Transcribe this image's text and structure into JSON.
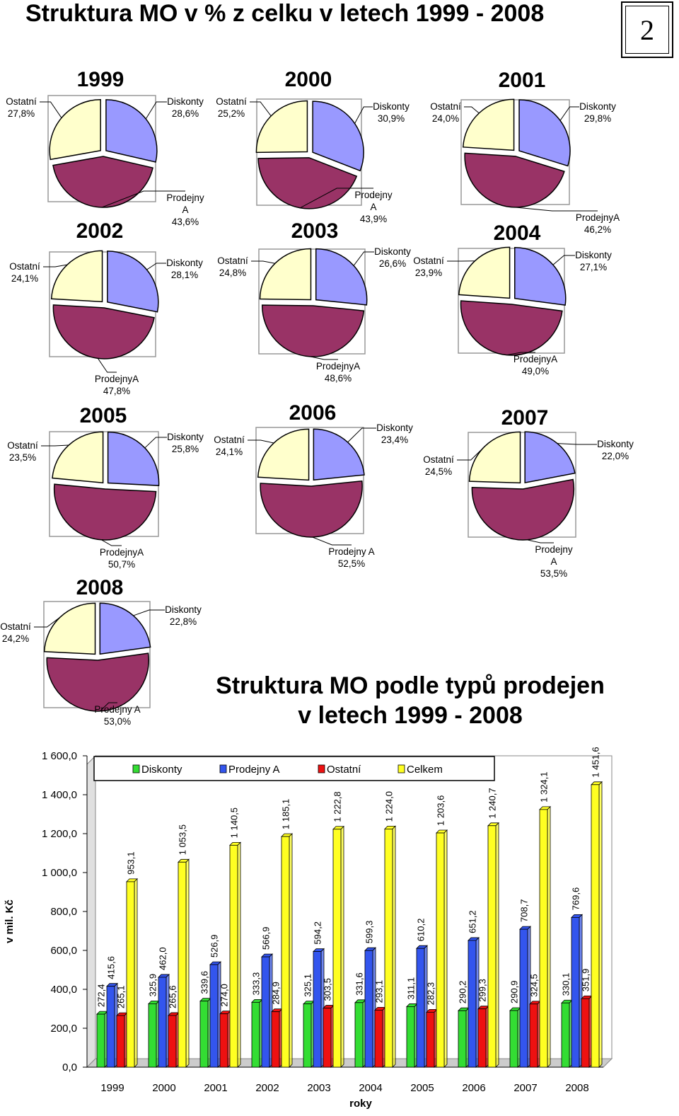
{
  "page": {
    "title": "Struktura MO v % z celku v letech 1999 - 2008",
    "page_number": "2"
  },
  "chart_data": [
    {
      "type": "pie",
      "title": "1999",
      "slices": [
        {
          "label": "Diskonty",
          "label_lines": [
            "Diskonty",
            "28,6%"
          ],
          "value": 28.6,
          "color": "#9999ff"
        },
        {
          "label": "Prodejny A",
          "label_lines": [
            "Prodejny",
            "A",
            "43,6%"
          ],
          "value": 43.6,
          "color": "#993366"
        },
        {
          "label": "Ostatní",
          "label_lines": [
            "Ostatní",
            "27,8%"
          ],
          "value": 27.8,
          "color": "#ffffcc"
        }
      ]
    },
    {
      "type": "pie",
      "title": "2000",
      "slices": [
        {
          "label": "Diskonty",
          "label_lines": [
            "Diskonty",
            "30,9%"
          ],
          "value": 30.9,
          "color": "#9999ff"
        },
        {
          "label": "Prodejny A",
          "label_lines": [
            "Prodejny",
            "A",
            "43,9%"
          ],
          "value": 43.9,
          "color": "#993366"
        },
        {
          "label": "Ostatní",
          "label_lines": [
            "Ostatní",
            "25,2%"
          ],
          "value": 25.2,
          "color": "#ffffcc"
        }
      ]
    },
    {
      "type": "pie",
      "title": "2001",
      "slices": [
        {
          "label": "Diskonty",
          "label_lines": [
            "Diskonty",
            "29,8%"
          ],
          "value": 29.8,
          "color": "#9999ff"
        },
        {
          "label": "ProdejnyA",
          "label_lines": [
            "ProdejnyA",
            "46,2%"
          ],
          "value": 46.2,
          "color": "#993366"
        },
        {
          "label": "Ostatní",
          "label_lines": [
            "Ostatní",
            "24,0%"
          ],
          "value": 24.0,
          "color": "#ffffcc"
        }
      ]
    },
    {
      "type": "pie",
      "title": "2002",
      "slices": [
        {
          "label": "Diskonty",
          "label_lines": [
            "Diskonty",
            "28,1%"
          ],
          "value": 28.1,
          "color": "#9999ff"
        },
        {
          "label": "ProdejnyA",
          "label_lines": [
            "ProdejnyA",
            "47,8%"
          ],
          "value": 47.8,
          "color": "#993366"
        },
        {
          "label": "Ostatní",
          "label_lines": [
            "Ostatní",
            "24,1%"
          ],
          "value": 24.1,
          "color": "#ffffcc"
        }
      ]
    },
    {
      "type": "pie",
      "title": "2003",
      "slices": [
        {
          "label": "Diskonty",
          "label_lines": [
            "Diskonty",
            "26,6%"
          ],
          "value": 26.6,
          "color": "#9999ff"
        },
        {
          "label": "ProdejnyA",
          "label_lines": [
            "ProdejnyA",
            "48,6%"
          ],
          "value": 48.6,
          "color": "#993366"
        },
        {
          "label": "Ostatní",
          "label_lines": [
            "Ostatní",
            "24,8%"
          ],
          "value": 24.8,
          "color": "#ffffcc"
        }
      ]
    },
    {
      "type": "pie",
      "title": "2004",
      "slices": [
        {
          "label": "Diskonty",
          "label_lines": [
            "Diskonty",
            "27,1%"
          ],
          "value": 27.1,
          "color": "#9999ff"
        },
        {
          "label": "ProdejnyA",
          "label_lines": [
            "ProdejnyA",
            "49,0%"
          ],
          "value": 49.0,
          "color": "#993366"
        },
        {
          "label": "Ostatní",
          "label_lines": [
            "Ostatní",
            "23,9%"
          ],
          "value": 23.9,
          "color": "#ffffcc"
        }
      ]
    },
    {
      "type": "pie",
      "title": "2005",
      "slices": [
        {
          "label": "Diskonty",
          "label_lines": [
            "Diskonty",
            "25,8%"
          ],
          "value": 25.8,
          "color": "#9999ff"
        },
        {
          "label": "ProdejnyA",
          "label_lines": [
            "ProdejnyA",
            "50,7%"
          ],
          "value": 50.7,
          "color": "#993366"
        },
        {
          "label": "Ostatní",
          "label_lines": [
            "Ostatní",
            "23,5%"
          ],
          "value": 23.5,
          "color": "#ffffcc"
        }
      ]
    },
    {
      "type": "pie",
      "title": "2006",
      "slices": [
        {
          "label": "Diskonty",
          "label_lines": [
            "Diskonty",
            "23,4%"
          ],
          "value": 23.4,
          "color": "#9999ff"
        },
        {
          "label": "Prodejny A",
          "label_lines": [
            "Prodejny A",
            "52,5%"
          ],
          "value": 52.5,
          "color": "#993366"
        },
        {
          "label": "Ostatní",
          "label_lines": [
            "Ostatní",
            "24,1%"
          ],
          "value": 24.1,
          "color": "#ffffcc"
        }
      ]
    },
    {
      "type": "pie",
      "title": "2007",
      "slices": [
        {
          "label": "Diskonty",
          "label_lines": [
            "Diskonty",
            "22,0%"
          ],
          "value": 22.0,
          "color": "#9999ff"
        },
        {
          "label": "Prodejny A",
          "label_lines": [
            "Prodejny",
            "A",
            "53,5%"
          ],
          "value": 53.5,
          "color": "#993366"
        },
        {
          "label": "Ostatní",
          "label_lines": [
            "Ostatní",
            "24,5%"
          ],
          "value": 24.5,
          "color": "#ffffcc"
        }
      ]
    },
    {
      "type": "pie",
      "title": "2008",
      "slices": [
        {
          "label": "Diskonty",
          "label_lines": [
            "Diskonty",
            "22,8%"
          ],
          "value": 22.8,
          "color": "#9999ff"
        },
        {
          "label": "Prodejny A",
          "label_lines": [
            "Prodejny A",
            "53,0%"
          ],
          "value": 53.0,
          "color": "#993366"
        },
        {
          "label": "Ostatní",
          "label_lines": [
            "Ostatní",
            "24,2%"
          ],
          "value": 24.2,
          "color": "#ffffcc"
        }
      ]
    },
    {
      "type": "bar",
      "title": "Struktura MO podle typů prodejen v letech 1999 - 2008",
      "title_lines": [
        "Struktura MO podle typů prodejen",
        "v letech 1999 - 2008"
      ],
      "xlabel": "roky",
      "ylabel": "v mil. Kč",
      "ylim": [
        0,
        1600
      ],
      "yticks": [
        0,
        200,
        400,
        600,
        800,
        1000,
        1200,
        1400,
        1600
      ],
      "ytick_labels": [
        "0,0",
        "200,0",
        "400,0",
        "600,0",
        "800,0",
        "1 000,0",
        "1 200,0",
        "1 400,0",
        "1 600,0"
      ],
      "legend_position": "top",
      "categories": [
        "1999",
        "2000",
        "2001",
        "2002",
        "2003",
        "2004",
        "2005",
        "2006",
        "2007",
        "2008"
      ],
      "series": [
        {
          "name": "Diskonty",
          "color": "#33dd33",
          "values": [
            272.4,
            325.9,
            339.6,
            333.3,
            325.1,
            331.6,
            311.1,
            290.2,
            290.9,
            330.1
          ],
          "labels": [
            "272,4",
            "325,9",
            "339,6",
            "333,3",
            "325,1",
            "331,6",
            "311,1",
            "290,2",
            "290,9",
            "330,1"
          ]
        },
        {
          "name": "Prodejny A",
          "color": "#3355ee",
          "values": [
            415.6,
            462.0,
            526.9,
            566.9,
            594.2,
            599.3,
            610.2,
            651.2,
            708.7,
            769.6
          ],
          "labels": [
            "415,6",
            "462,0",
            "526,9",
            "566,9",
            "594,2",
            "599,3",
            "610,2",
            "651,2",
            "708,7",
            "769,6"
          ]
        },
        {
          "name": "Ostatní",
          "color": "#ee1111",
          "values": [
            265.1,
            265.6,
            274.0,
            284.9,
            303.5,
            293.1,
            282.3,
            299.3,
            324.5,
            351.9
          ],
          "labels": [
            "265,1",
            "265,6",
            "274,0",
            "284,9",
            "303,5",
            "293,1",
            "282,3",
            "299,3",
            "324,5",
            "351,9"
          ]
        },
        {
          "name": "Celkem",
          "color": "#ffff22",
          "values": [
            953.1,
            1053.5,
            1140.5,
            1185.1,
            1222.8,
            1224.0,
            1203.6,
            1240.7,
            1324.1,
            1451.6
          ],
          "labels": [
            "953,1",
            "1 053,5",
            "1 140,5",
            "1 185,1",
            "1 222,8",
            "1 224,0",
            "1 203,6",
            "1 240,7",
            "1 324,1",
            "1 451,6"
          ]
        }
      ]
    }
  ]
}
